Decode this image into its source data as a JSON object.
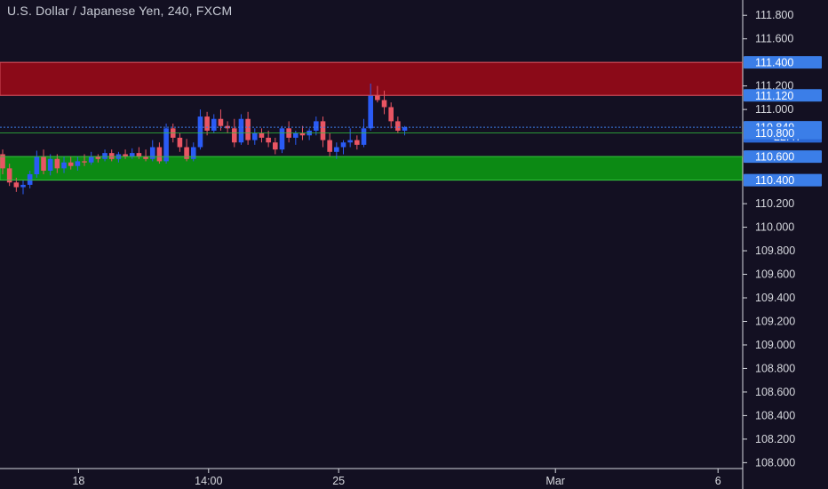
{
  "header": {
    "title": "U.S. Dollar / Japanese Yen, 240, FXCM"
  },
  "colors": {
    "background": "#131022",
    "up_candle": "#2a5bf5",
    "down_candle": "#e95563",
    "resistance_zone": "#8b0a18",
    "support_zone": "#0c8a14",
    "axis_text": "#d6d8de",
    "label_bg": "#3b7ee8",
    "price_line": "#3b7ee8"
  },
  "chart_data": {
    "type": "candlestick",
    "symbol": "U.S. Dollar / Japanese Yen",
    "interval": "240",
    "source": "FXCM",
    "ylim": [
      107.95,
      111.93
    ],
    "y_ticks": [
      "111.800",
      "111.600",
      "111.200",
      "111.000",
      "110.200",
      "110.000",
      "109.800",
      "109.600",
      "109.400",
      "109.200",
      "109.000",
      "108.800",
      "108.600",
      "108.400",
      "108.200",
      "108.000"
    ],
    "x_ticks": [
      "18",
      "14:00",
      "25",
      "Mar",
      "6"
    ],
    "x_tick_bar_index": [
      14,
      38,
      62,
      102,
      132
    ],
    "zones": [
      {
        "type": "resistance",
        "from": 111.12,
        "to": 111.4
      },
      {
        "type": "support",
        "from": 110.4,
        "to": 110.6
      }
    ],
    "price_labels": [
      {
        "text": "111.400",
        "value": 111.4,
        "style": "line"
      },
      {
        "text": "111.120",
        "value": 111.12,
        "style": "line"
      },
      {
        "text": "110.849",
        "value": 110.849,
        "style": "current"
      },
      {
        "text": "22:47",
        "value": 110.772,
        "style": "countdown"
      },
      {
        "text": "110.800",
        "value": 110.8,
        "style": "line"
      },
      {
        "text": "110.600",
        "value": 110.6,
        "style": "line"
      },
      {
        "text": "110.400",
        "value": 110.4,
        "style": "line"
      }
    ],
    "current_price": 110.849,
    "candles": [
      [
        110.62,
        110.66,
        110.45,
        110.5
      ],
      [
        110.5,
        110.54,
        110.35,
        110.38
      ],
      [
        110.38,
        110.42,
        110.3,
        110.34
      ],
      [
        110.34,
        110.4,
        110.28,
        110.36
      ],
      [
        110.36,
        110.48,
        110.33,
        110.45
      ],
      [
        110.45,
        110.65,
        110.42,
        110.6
      ],
      [
        110.6,
        110.66,
        110.45,
        110.48
      ],
      [
        110.48,
        110.62,
        110.44,
        110.58
      ],
      [
        110.58,
        110.62,
        110.46,
        110.5
      ],
      [
        110.5,
        110.6,
        110.46,
        110.55
      ],
      [
        110.55,
        110.6,
        110.49,
        110.52
      ],
      [
        110.52,
        110.6,
        110.48,
        110.56
      ],
      [
        110.56,
        110.62,
        110.52,
        110.55
      ],
      [
        110.55,
        110.64,
        110.53,
        110.6
      ],
      [
        110.6,
        110.62,
        110.55,
        110.58
      ],
      [
        110.58,
        110.66,
        110.56,
        110.63
      ],
      [
        110.63,
        110.66,
        110.56,
        110.58
      ],
      [
        110.58,
        110.64,
        110.55,
        110.62
      ],
      [
        110.62,
        110.66,
        110.58,
        110.6
      ],
      [
        110.6,
        110.67,
        110.58,
        110.63
      ],
      [
        110.63,
        110.68,
        110.58,
        110.6
      ],
      [
        110.6,
        110.66,
        110.56,
        110.58
      ],
      [
        110.58,
        110.74,
        110.56,
        110.68
      ],
      [
        110.68,
        110.72,
        110.54,
        110.56
      ],
      [
        110.56,
        110.88,
        110.54,
        110.84
      ],
      [
        110.84,
        110.88,
        110.72,
        110.76
      ],
      [
        110.76,
        110.8,
        110.64,
        110.68
      ],
      [
        110.68,
        110.75,
        110.56,
        110.58
      ],
      [
        110.58,
        110.72,
        110.56,
        110.68
      ],
      [
        110.68,
        111.0,
        110.66,
        110.94
      ],
      [
        110.94,
        110.98,
        110.78,
        110.82
      ],
      [
        110.82,
        110.96,
        110.8,
        110.92
      ],
      [
        110.92,
        111.0,
        110.82,
        110.86
      ],
      [
        110.86,
        110.9,
        110.8,
        110.84
      ],
      [
        110.84,
        110.92,
        110.68,
        110.72
      ],
      [
        110.72,
        110.96,
        110.7,
        110.92
      ],
      [
        110.92,
        110.98,
        110.7,
        110.74
      ],
      [
        110.74,
        110.84,
        110.7,
        110.8
      ],
      [
        110.8,
        110.84,
        110.72,
        110.76
      ],
      [
        110.76,
        110.82,
        110.68,
        110.72
      ],
      [
        110.72,
        110.76,
        110.62,
        110.66
      ],
      [
        110.66,
        110.86,
        110.63,
        110.84
      ],
      [
        110.84,
        110.9,
        110.72,
        110.76
      ],
      [
        110.76,
        110.82,
        110.7,
        110.8
      ],
      [
        110.8,
        110.86,
        110.74,
        110.78
      ],
      [
        110.78,
        110.84,
        110.74,
        110.82
      ],
      [
        110.82,
        110.94,
        110.78,
        110.9
      ],
      [
        110.9,
        110.94,
        110.68,
        110.74
      ],
      [
        110.74,
        110.8,
        110.6,
        110.64
      ],
      [
        110.64,
        110.72,
        110.58,
        110.68
      ],
      [
        110.68,
        110.74,
        110.62,
        110.72
      ],
      [
        110.72,
        110.84,
        110.68,
        110.74
      ],
      [
        110.74,
        110.78,
        110.66,
        110.7
      ],
      [
        110.7,
        110.92,
        110.68,
        110.84
      ],
      [
        110.84,
        111.22,
        110.82,
        111.12
      ],
      [
        111.12,
        111.2,
        111.06,
        111.08
      ],
      [
        111.08,
        111.16,
        110.96,
        111.02
      ],
      [
        111.02,
        111.06,
        110.84,
        110.9
      ],
      [
        110.9,
        110.94,
        110.8,
        110.82
      ],
      [
        110.82,
        110.86,
        110.78,
        110.849
      ]
    ],
    "candle_spacing_bars": 2
  }
}
